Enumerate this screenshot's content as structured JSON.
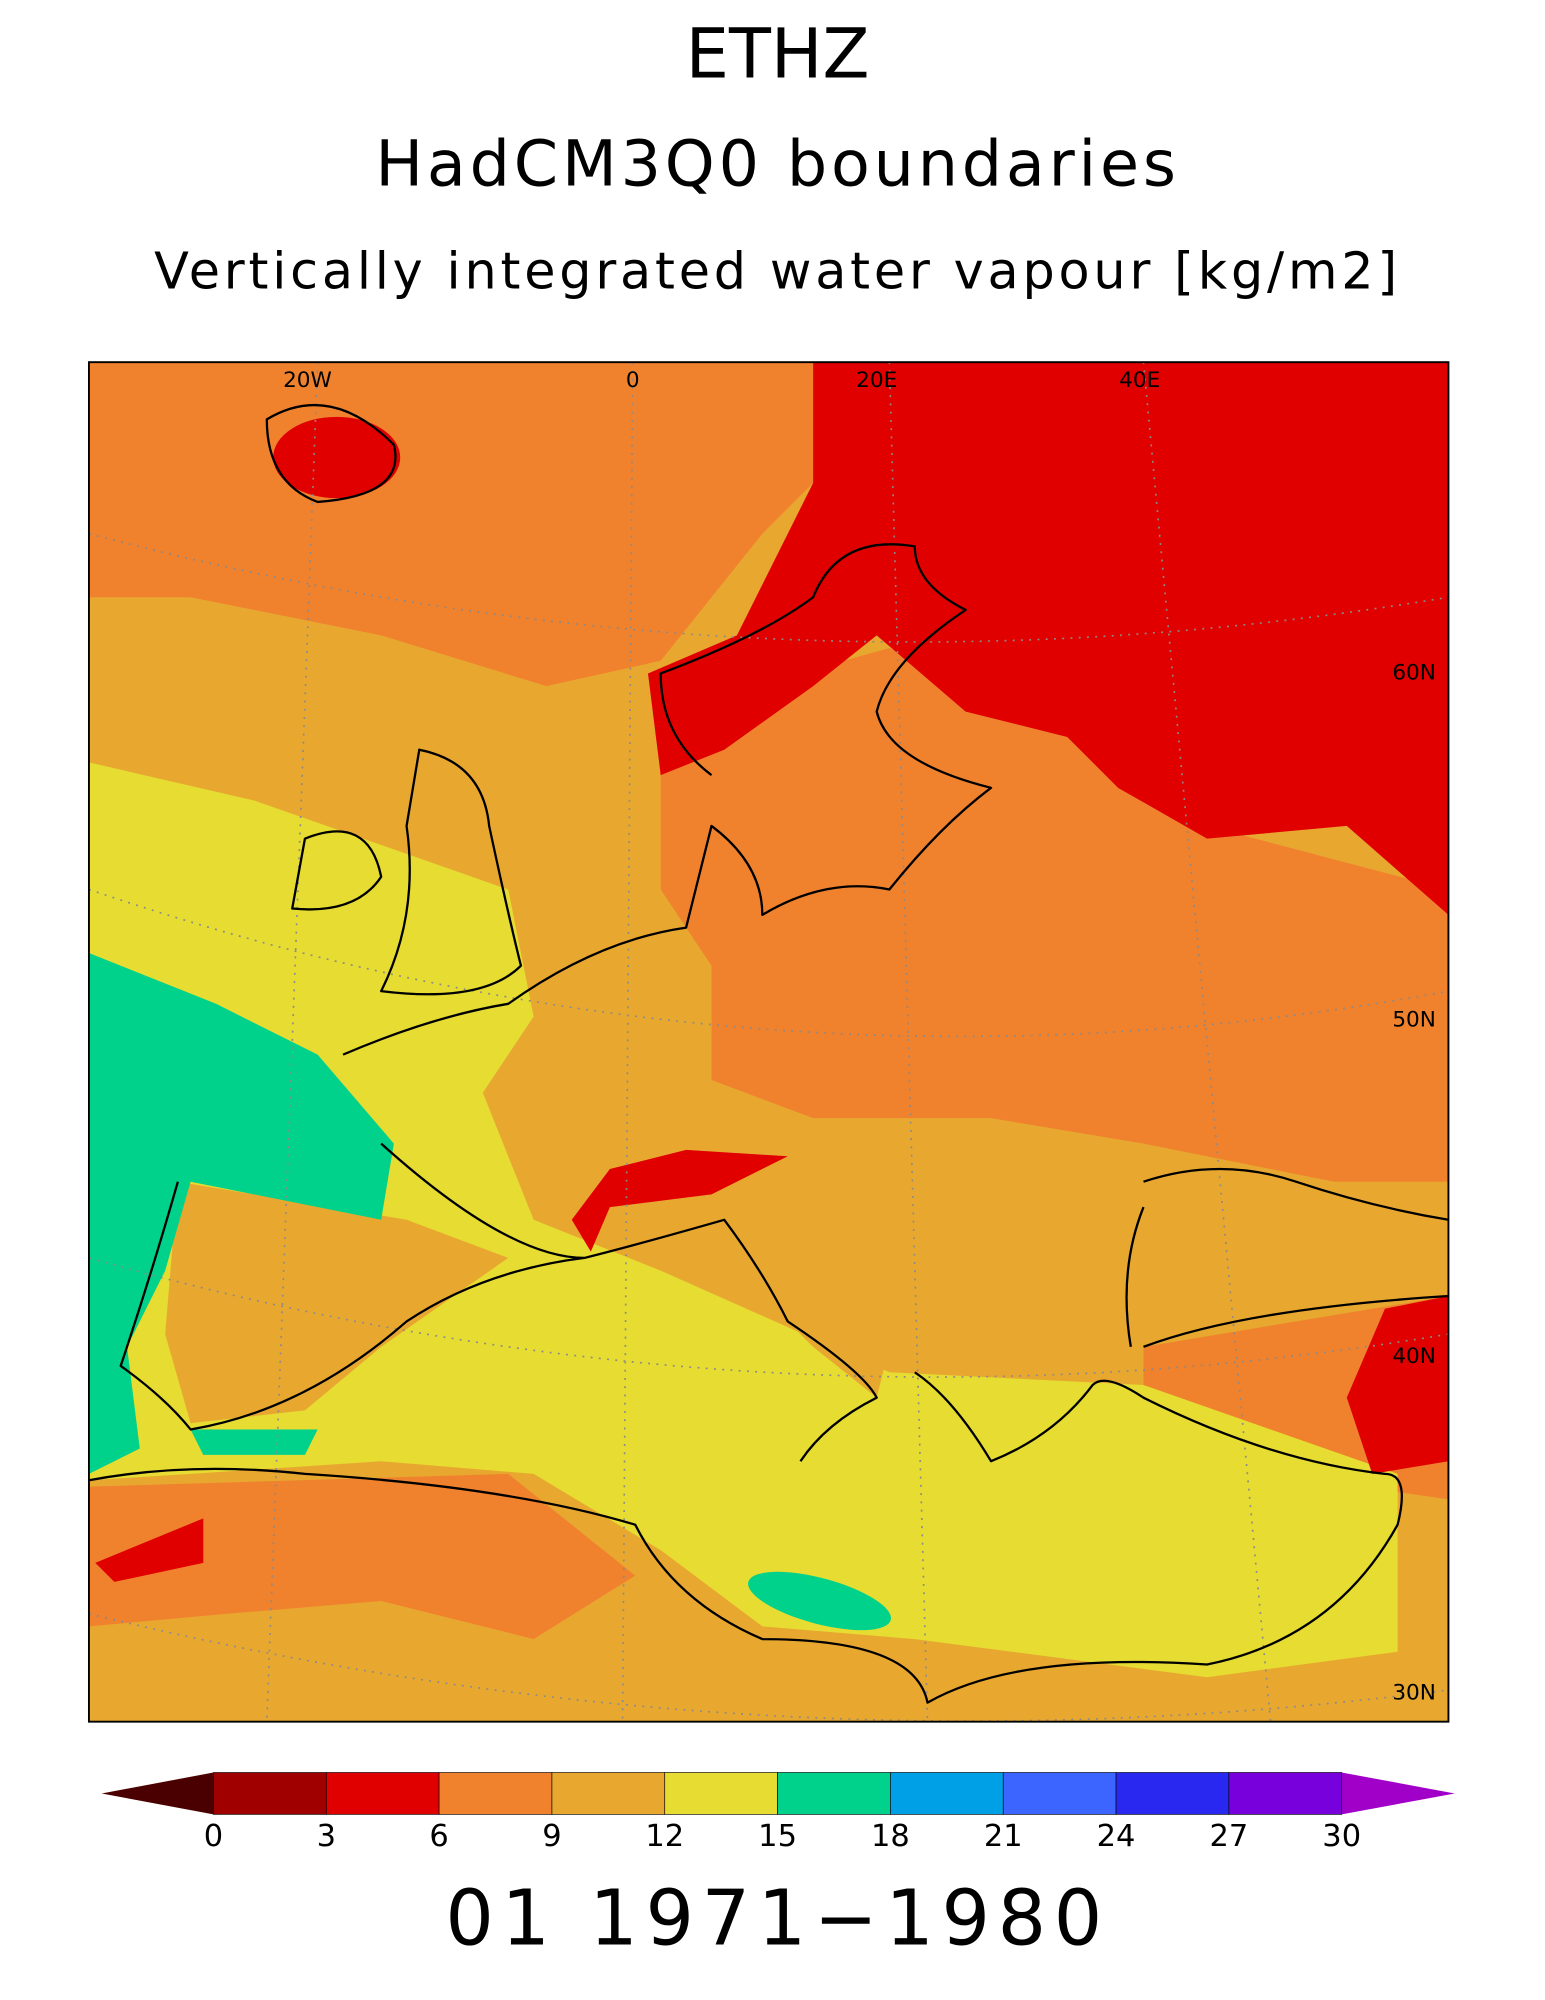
{
  "title": "ETHZ",
  "subtitle": "HadCM3Q0 boundaries",
  "variable": "Vertically integrated water vapour [kg/m2]",
  "map": {
    "grid_labels": [
      "20W",
      "0",
      "20E",
      "40E",
      "60N",
      "50N",
      "40N",
      "30N"
    ]
  },
  "colorbar": {
    "ticks": [
      0,
      3,
      6,
      9,
      12,
      15,
      18,
      21,
      24,
      27,
      30
    ],
    "colors": [
      "#4a0000",
      "#a00000",
      "#e00000",
      "#f0822e",
      "#e8a830",
      "#e6dc32",
      "#00d28c",
      "#00a0e6",
      "#3c64ff",
      "#2828f0",
      "#7800dc",
      "#a000c8"
    ]
  },
  "footer": "01 1971−1980"
}
